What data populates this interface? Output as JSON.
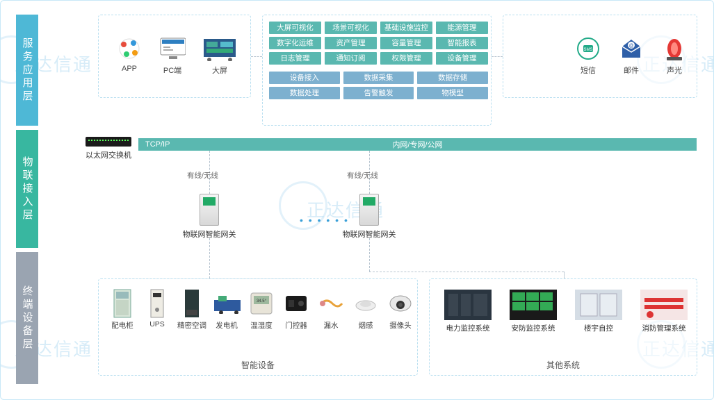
{
  "layers": {
    "service": "服务应用层",
    "iot": "物联接入层",
    "terminal": "终端设备层"
  },
  "watermark": "正达信通",
  "left_apps": [
    {
      "name": "APP",
      "data_name": "app-icon"
    },
    {
      "name": "PC端",
      "data_name": "pc-icon"
    },
    {
      "name": "大屏",
      "data_name": "bigscreen-icon"
    }
  ],
  "center_grid": {
    "row1": [
      "大屏可视化",
      "场景可视化",
      "基础设施监控",
      "能源管理"
    ],
    "row2": [
      "数字化运维",
      "资产管理",
      "容量管理",
      "智能报表"
    ],
    "row3": [
      "日志管理",
      "通知订阅",
      "权限管理",
      "设备管理"
    ],
    "row4": [
      "设备接入",
      "数据采集",
      "数据存储"
    ],
    "row5": [
      "数据处理",
      "告警触发",
      "物模型"
    ]
  },
  "right_alerts": [
    {
      "name": "短信",
      "data_name": "sms-icon"
    },
    {
      "name": "邮件",
      "data_name": "mail-icon"
    },
    {
      "name": "声光",
      "data_name": "alarm-icon"
    }
  ],
  "switch": {
    "label": "以太网交换机",
    "protocol": "TCP/IP",
    "net": "内网/专网/公网"
  },
  "gateway": {
    "conn": "有线/无线",
    "label": "物联网智能网关"
  },
  "smart_devices": [
    "配电柜",
    "UPS",
    "精密空调",
    "发电机",
    "温湿度",
    "门控器",
    "漏水",
    "烟感",
    "摄像头"
  ],
  "smart_devices_group": "智能设备",
  "other_systems": [
    "电力监控系统",
    "安防监控系统",
    "楼宇自控",
    "消防管理系统"
  ],
  "other_systems_group": "其他系统",
  "colors": {
    "teal": "#5ab8b0",
    "blue": "#7db0cf",
    "border": "#c8e8f7",
    "dash": "#b8c5d0"
  }
}
